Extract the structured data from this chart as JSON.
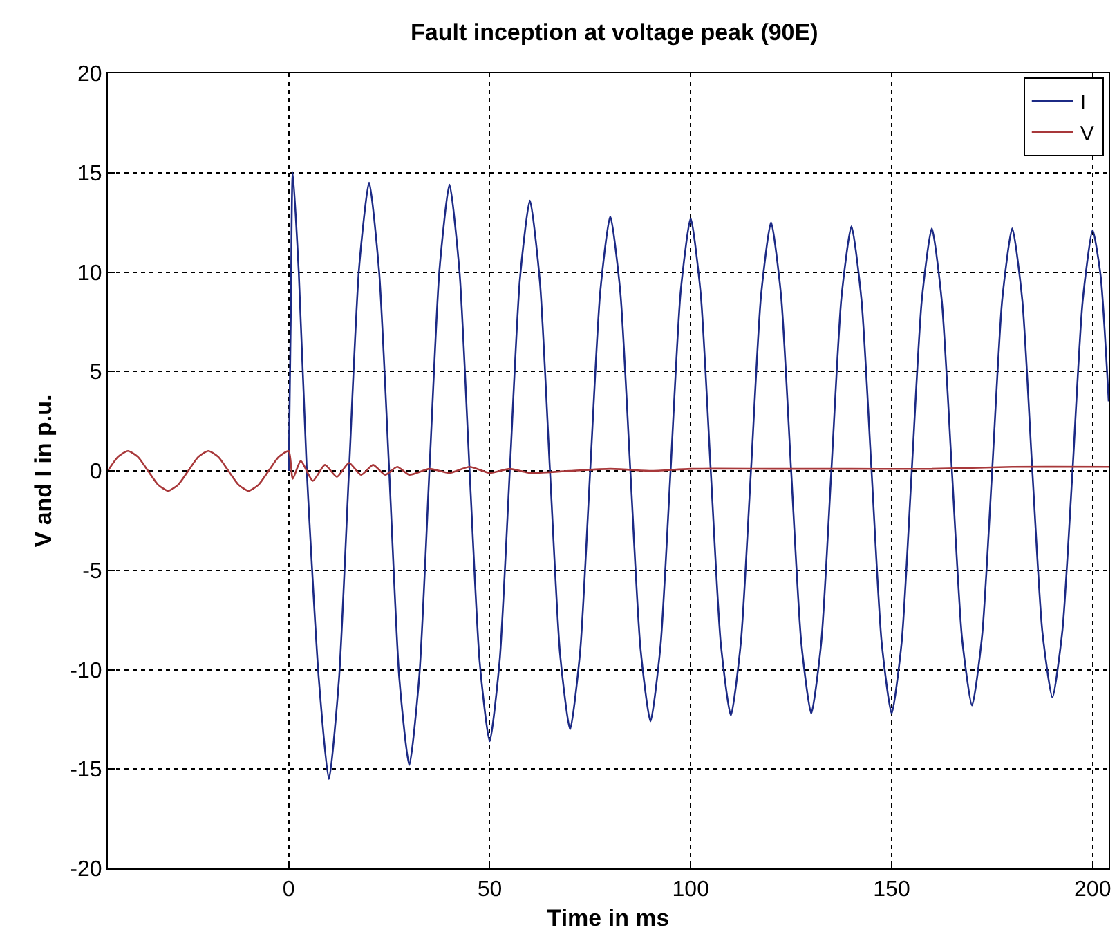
{
  "chart_data": {
    "type": "line",
    "title": "Fault inception at voltage peak (90E)",
    "xlabel": "Time in ms",
    "ylabel": "V and I in p.u.",
    "xlim": [
      -45,
      204
    ],
    "xticks": [
      0,
      50,
      100,
      150,
      200
    ],
    "ylim": [
      -20,
      20
    ],
    "yticks": [
      -20,
      -15,
      -10,
      -5,
      0,
      5,
      10,
      15,
      20
    ],
    "grid": true,
    "legend": "top right",
    "line_style": "solid",
    "marker": "none",
    "series": [
      {
        "name": "I",
        "color": "#1c2a85",
        "x": [
          0,
          0.5,
          1,
          2.5,
          4.5,
          7.5,
          10,
          12.5,
          15,
          17.5,
          20,
          22.5,
          25,
          27.5,
          30,
          32.5,
          35,
          37.5,
          40,
          42.5,
          45,
          47.5,
          50,
          52.5,
          55,
          57.5,
          60,
          62.5,
          65,
          67.5,
          70,
          72.5,
          75,
          77.5,
          80,
          82.5,
          85,
          87.5,
          90,
          92.5,
          95,
          97.5,
          100,
          102.5,
          105,
          107.5,
          110,
          112.5,
          115,
          117.5,
          120,
          122.5,
          125,
          127.5,
          130,
          132.5,
          135,
          137.5,
          140,
          142.5,
          145,
          147.5,
          150,
          152.5,
          155,
          157.5,
          160,
          162.5,
          165,
          167.5,
          170,
          172.5,
          175,
          177.5,
          180,
          182.5,
          185,
          187.5,
          190,
          192.5,
          195,
          197.5,
          200,
          202,
          204
        ],
        "values": [
          0,
          7.5,
          15,
          10,
          0,
          -10.5,
          -15.5,
          -10.5,
          0,
          10.2,
          14.5,
          10,
          0,
          -10.4,
          -14.8,
          -10.3,
          0,
          10.1,
          14.4,
          10,
          0,
          -9.6,
          -13.6,
          -9.5,
          0,
          9.6,
          13.6,
          9.5,
          0,
          -9.2,
          -13,
          -9.1,
          0,
          9,
          12.8,
          9,
          0,
          -8.9,
          -12.6,
          -8.8,
          0,
          9,
          12.7,
          8.9,
          0,
          -8.7,
          -12.3,
          -8.6,
          0,
          8.8,
          12.5,
          8.8,
          0,
          -8.6,
          -12.2,
          -8.6,
          0,
          8.7,
          12.3,
          8.6,
          0,
          -8.6,
          -12.2,
          -8.6,
          0,
          8.6,
          12.2,
          8.5,
          0,
          -8.4,
          -11.8,
          -8.3,
          0,
          8.6,
          12.2,
          8.6,
          0,
          -8.1,
          -11.4,
          -8,
          0,
          8.5,
          12.1,
          9.8,
          3.5
        ]
      },
      {
        "name": "V",
        "color": "#a8383a",
        "x": [
          -45,
          -42.5,
          -40,
          -37.5,
          -35,
          -32.5,
          -30,
          -27.5,
          -25,
          -22.5,
          -20,
          -17.5,
          -15,
          -12.5,
          -10,
          -7.5,
          -5,
          -2.5,
          0,
          1,
          3,
          6,
          9,
          12,
          15,
          18,
          21,
          24,
          27,
          30,
          35,
          40,
          45,
          50,
          55,
          60,
          70,
          80,
          90,
          100,
          120,
          140,
          160,
          180,
          204
        ],
        "values": [
          0,
          0.7,
          1,
          0.7,
          0,
          -0.7,
          -1,
          -0.7,
          0,
          0.7,
          1,
          0.7,
          0,
          -0.7,
          -1,
          -0.7,
          0,
          0.7,
          1,
          -0.4,
          0.5,
          -0.5,
          0.3,
          -0.3,
          0.4,
          -0.2,
          0.3,
          -0.2,
          0.2,
          -0.2,
          0.1,
          -0.1,
          0.2,
          -0.1,
          0.1,
          -0.1,
          0,
          0.1,
          0,
          0.1,
          0.1,
          0.1,
          0.1,
          0.2,
          0.2
        ]
      }
    ]
  }
}
